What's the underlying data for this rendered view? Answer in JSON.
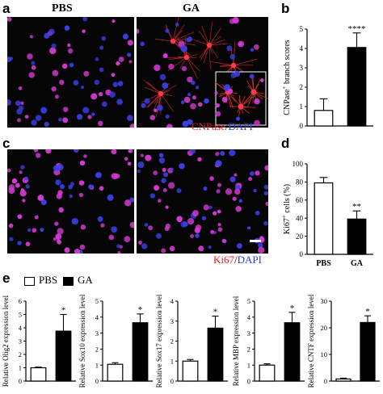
{
  "panels": {
    "a": "a",
    "b": "b",
    "c": "c",
    "d": "d",
    "e": "e"
  },
  "headers": {
    "pbs": "PBS",
    "ga": "GA"
  },
  "legend_a": {
    "marker": "CNPase",
    "sep": "/",
    "nuclear": "DAPI"
  },
  "legend_c": {
    "marker": "Ki67",
    "sep": "/",
    "nuclear": "DAPI"
  },
  "colors": {
    "red": "#e8202a",
    "blue": "#2b3fd8",
    "background": "#050505"
  },
  "group_legend": {
    "pbs": "PBS",
    "ga": "GA"
  },
  "chart_data": [
    {
      "id": "b",
      "type": "bar",
      "categories": [
        "",
        ""
      ],
      "values": [
        0.8,
        4.05
      ],
      "errors": [
        0.6,
        0.75
      ],
      "fills": [
        "white",
        "black"
      ],
      "ylabel": "CNPase+ branch scores",
      "ylim": [
        0,
        5
      ],
      "yticks": [
        "0",
        "1",
        "2",
        "3",
        "4",
        "5"
      ],
      "significance": [
        "",
        "****"
      ]
    },
    {
      "id": "d",
      "type": "bar",
      "categories": [
        "PBS",
        "GA"
      ],
      "values": [
        79,
        39
      ],
      "errors": [
        6,
        9
      ],
      "fills": [
        "white",
        "black"
      ],
      "ylabel": "Ki67+ cells (%)",
      "ylim": [
        0,
        100
      ],
      "yticks": [
        "0",
        "20",
        "40",
        "60",
        "80",
        "100"
      ],
      "significance": [
        "",
        "**"
      ]
    },
    {
      "id": "e1",
      "type": "bar",
      "categories": [
        "",
        ""
      ],
      "values": [
        1.0,
        3.75
      ],
      "errors": [
        0.05,
        1.25
      ],
      "fills": [
        "white",
        "black"
      ],
      "ylabel": "Relative Olig2 expression level",
      "ylim": [
        0,
        6
      ],
      "yticks": [
        "0",
        "1",
        "2",
        "3",
        "4",
        "5",
        "6"
      ],
      "significance": [
        "",
        "*"
      ]
    },
    {
      "id": "e2",
      "type": "bar",
      "categories": [
        "",
        ""
      ],
      "values": [
        1.05,
        3.65
      ],
      "errors": [
        0.1,
        0.55
      ],
      "fills": [
        "white",
        "black"
      ],
      "ylabel": "Relative Sox10 expression level",
      "ylim": [
        0,
        5
      ],
      "yticks": [
        "0",
        "1",
        "2",
        "3",
        "4",
        "5"
      ],
      "significance": [
        "",
        "*"
      ]
    },
    {
      "id": "e3",
      "type": "bar",
      "categories": [
        "",
        ""
      ],
      "values": [
        1.0,
        2.65
      ],
      "errors": [
        0.08,
        0.6
      ],
      "fills": [
        "white",
        "black"
      ],
      "ylabel": "Relative Sox17 expression level",
      "ylim": [
        0,
        4
      ],
      "yticks": [
        "0",
        "1",
        "2",
        "3",
        "4"
      ],
      "significance": [
        "",
        "*"
      ]
    },
    {
      "id": "e4",
      "type": "bar",
      "categories": [
        "",
        ""
      ],
      "values": [
        1.0,
        3.65
      ],
      "errors": [
        0.08,
        0.65
      ],
      "fills": [
        "white",
        "black"
      ],
      "ylabel": "Relative MBP expression level",
      "ylim": [
        0,
        5
      ],
      "yticks": [
        "0",
        "1",
        "2",
        "3",
        "4",
        "5"
      ],
      "significance": [
        "",
        "*"
      ]
    },
    {
      "id": "e5",
      "type": "bar",
      "categories": [
        "",
        ""
      ],
      "values": [
        0.8,
        22
      ],
      "errors": [
        0.3,
        2.5
      ],
      "fills": [
        "white",
        "black"
      ],
      "ylabel": "Relative CNTF expression level",
      "ylim": [
        0,
        30
      ],
      "yticks": [
        "0",
        "10",
        "20",
        "30"
      ],
      "significance": [
        "",
        "*"
      ]
    }
  ]
}
